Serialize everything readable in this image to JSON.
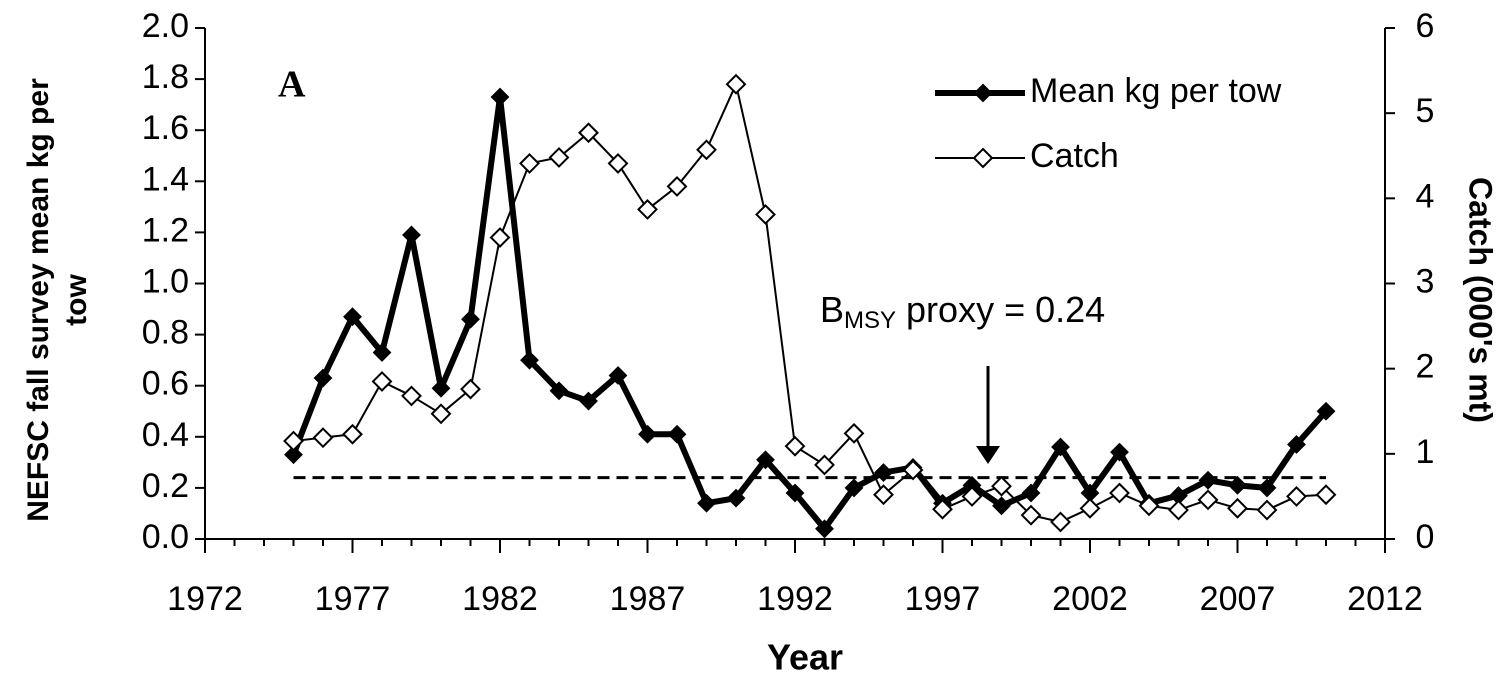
{
  "chart_data": {
    "type": "line",
    "panel_label": "A",
    "x_label": "Year",
    "y_label": [
      "NEFSC fall survey mean kg per",
      "tow"
    ],
    "y2_label": "Catch (000's mt)",
    "x": [
      1975,
      1976,
      1977,
      1978,
      1979,
      1980,
      1981,
      1982,
      1983,
      1984,
      1985,
      1986,
      1987,
      1988,
      1989,
      1990,
      1991,
      1992,
      1993,
      1994,
      1995,
      1996,
      1997,
      1998,
      1999,
      2000,
      2001,
      2002,
      2003,
      2004,
      2005,
      2006,
      2007,
      2008,
      2009,
      2010
    ],
    "series": [
      {
        "name": "Mean kg per tow",
        "color": "#000000",
        "marker_fill": "#000000",
        "values": [
          0.33,
          0.63,
          0.87,
          0.73,
          1.19,
          0.59,
          0.86,
          1.73,
          0.7,
          0.58,
          0.54,
          0.64,
          0.41,
          0.41,
          0.14,
          0.16,
          0.31,
          0.18,
          0.04,
          0.2,
          0.26,
          0.28,
          0.14,
          0.21,
          0.13,
          0.18,
          0.36,
          0.18,
          0.34,
          0.14,
          0.17,
          0.23,
          0.21,
          0.2,
          0.37,
          0.5
        ]
      },
      {
        "name": "Catch",
        "color": "#000000",
        "marker_fill": "#ffffff",
        "axis": "y2",
        "values": [
          1.15,
          1.19,
          1.23,
          1.85,
          1.68,
          1.47,
          1.76,
          3.54,
          4.41,
          4.48,
          4.77,
          4.41,
          3.87,
          4.14,
          4.57,
          5.34,
          3.81,
          1.09,
          0.87,
          1.24,
          0.52,
          0.81,
          0.35,
          0.5,
          0.62,
          0.28,
          0.2,
          0.36,
          0.54,
          0.39,
          0.34,
          0.46,
          0.36,
          0.34,
          0.5,
          0.52
        ]
      }
    ],
    "reference_line": 0.24,
    "annotation": {
      "main": "B",
      "sub": "MSY",
      "rest": " proxy = 0.24"
    },
    "xlim": [
      1972,
      2012
    ],
    "xticks": [
      1972,
      1977,
      1982,
      1987,
      1992,
      1997,
      2002,
      2007,
      2012
    ],
    "ylim": [
      0,
      2
    ],
    "yticks": [
      {
        "value": 0,
        "label": "0.0"
      },
      0.2,
      0.4,
      0.6,
      0.8,
      {
        "value": 1,
        "label": "1.0"
      },
      1.2,
      1.4,
      1.6,
      1.8,
      {
        "value": 2,
        "label": "2.0"
      }
    ],
    "y2lim": [
      0,
      6
    ],
    "y2ticks": [
      0,
      1,
      2,
      3,
      4,
      5,
      6
    ],
    "legend": "top-right"
  }
}
